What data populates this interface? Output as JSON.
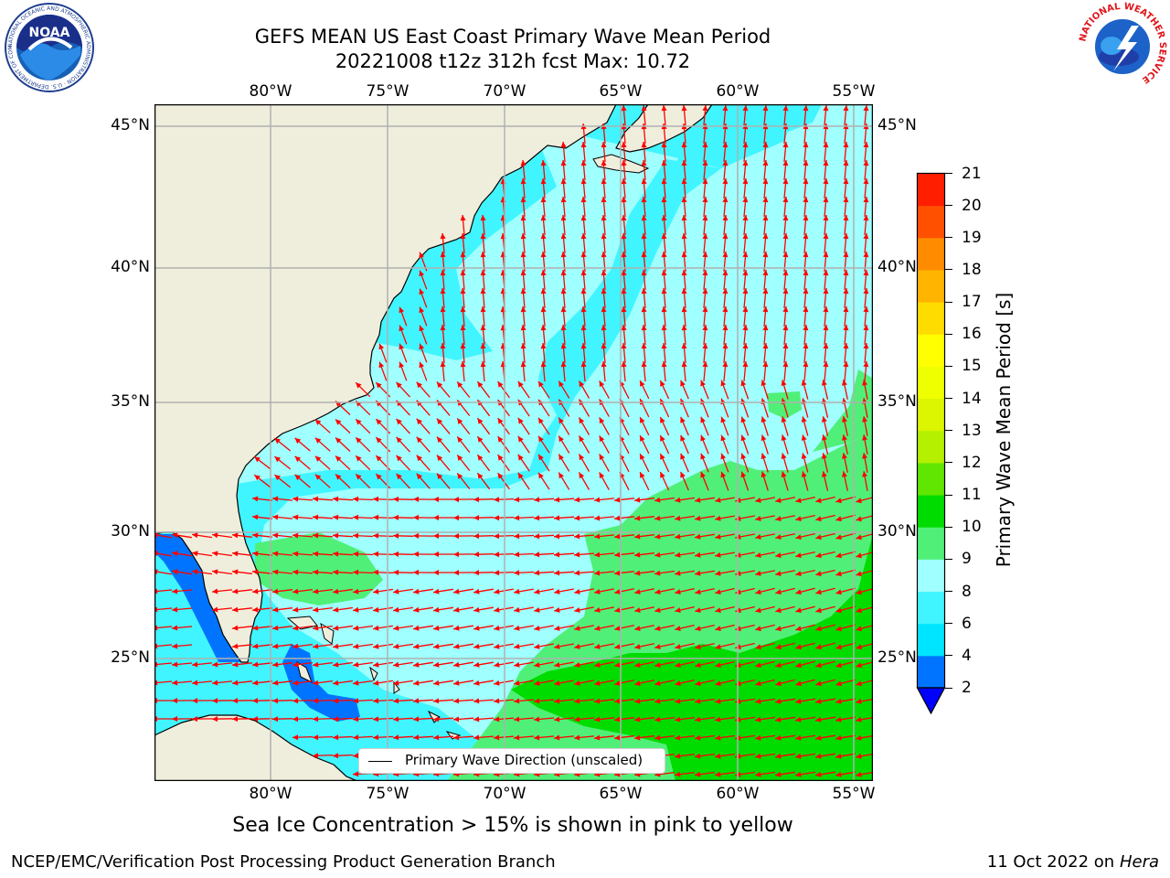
{
  "header": {
    "title_line1": "GEFS MEAN US East Coast Primary Wave Mean Period",
    "title_line2": "20221008 t12z 312h fcst   Max: 10.72"
  },
  "logos": {
    "left": {
      "name": "NOAA",
      "text": "NOAA",
      "ring_text": "NATIONAL OCEANIC AND ATMOSPHERIC ADMINISTRATION · U.S. DEPARTMENT OF COMMERCE"
    },
    "right": {
      "name": "National Weather Service",
      "ring_text": "NATIONAL WEATHER SERVICE"
    }
  },
  "map": {
    "lon_ticks": [
      "80°W",
      "75°W",
      "70°W",
      "65°W",
      "60°W",
      "55°W"
    ],
    "lat_ticks": [
      "45°N",
      "40°N",
      "35°N",
      "30°N",
      "25°N"
    ],
    "lon_range": [
      -85,
      -54.2
    ],
    "lat_range": [
      20.2,
      45.7
    ],
    "gridline_color": "#b0b0b0",
    "land_color": "#efeedc",
    "arrow_color": "#ff0000",
    "legend_label": "Primary Wave Direction (unscaled)"
  },
  "colorbar": {
    "label": "Primary Wave Mean Period [s]",
    "ticks": [
      "2",
      "4",
      "6",
      "8",
      "9",
      "10",
      "11",
      "12",
      "13",
      "14",
      "15",
      "16",
      "17",
      "18",
      "19",
      "20",
      "21"
    ],
    "colors": [
      "#0074ff",
      "#00e5ff",
      "#40f5ff",
      "#a0ffff",
      "#50f078",
      "#00dc00",
      "#60e600",
      "#b4f000",
      "#dcf500",
      "#f0ff00",
      "#ffff00",
      "#ffdc00",
      "#ffb400",
      "#ff8c00",
      "#ff5000",
      "#ff1e00"
    ],
    "extend_color": "#0000ff"
  },
  "footer": {
    "subtitle": "Sea Ice Concentration > 15% is shown in pink to yellow",
    "left": "NCEP/EMC/Verification Post Processing Product Generation Branch",
    "right_prefix": "11 Oct 2022 on ",
    "right_italic": "Hera"
  }
}
